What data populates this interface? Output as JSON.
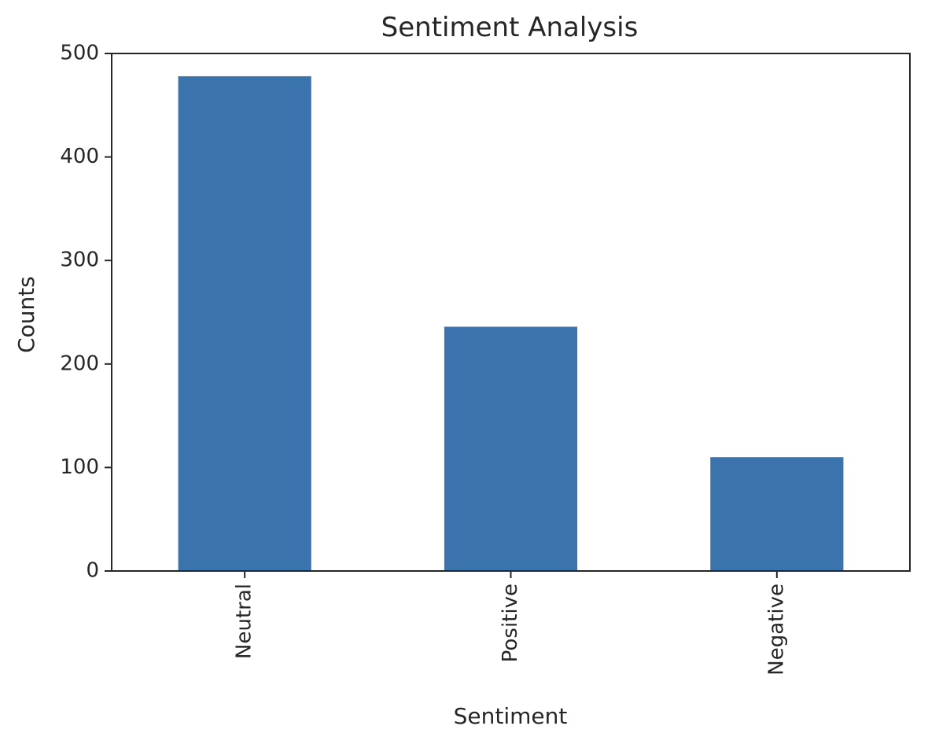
{
  "chart_data": {
    "type": "bar",
    "title": "Sentiment Analysis",
    "xlabel": "Sentiment",
    "ylabel": "Counts",
    "categories": [
      "Neutral",
      "Positive",
      "Negative"
    ],
    "values": [
      478,
      236,
      110
    ],
    "ylim": [
      0,
      500
    ],
    "yticks": [
      0,
      100,
      200,
      300,
      400,
      500
    ],
    "ytick_labels": [
      "0",
      "100",
      "200",
      "300",
      "400",
      "500"
    ],
    "xtick_rotation": "vertical",
    "grid": false,
    "legend": "none",
    "bar_color": "#3b73ad"
  }
}
